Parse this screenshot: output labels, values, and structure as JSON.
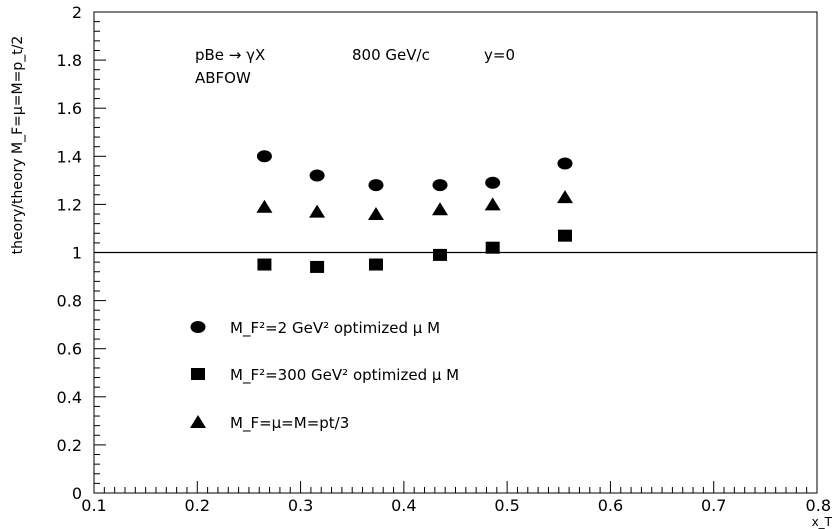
{
  "chart_data": {
    "type": "scatter",
    "title": "",
    "annotations": [
      "pBe → γX",
      "800 GeV/c",
      "y=0",
      "ABFOW"
    ],
    "xlabel": "x_T",
    "ylabel": "theory/theory M_F=μ=M=p_t/2",
    "xlim": [
      0.1,
      0.8
    ],
    "ylim": [
      0,
      2
    ],
    "x_ticks": [
      "0.1",
      "0.2",
      "0.3",
      "0.4",
      "0.5",
      "0.6",
      "0.7",
      "0.8"
    ],
    "y_ticks": [
      "0",
      "0.2",
      "0.4",
      "0.6",
      "0.8",
      "1",
      "1.2",
      "1.4",
      "1.6",
      "1.8",
      "2"
    ],
    "reference_line_y": 1,
    "grid": false,
    "legend_position": "left-center",
    "series": [
      {
        "name": "M_F²=2 GeV² optimized μ M",
        "marker": "circle",
        "x": [
          0.265,
          0.316,
          0.373,
          0.435,
          0.486,
          0.556
        ],
        "y": [
          1.4,
          1.32,
          1.28,
          1.28,
          1.29,
          1.37
        ]
      },
      {
        "name": "M_F²=300 GeV² optimized μ M",
        "marker": "square",
        "x": [
          0.265,
          0.316,
          0.373,
          0.435,
          0.486,
          0.556
        ],
        "y": [
          0.95,
          0.94,
          0.95,
          0.99,
          1.02,
          1.07
        ]
      },
      {
        "name": "M_F=μ=M=pt/3",
        "marker": "triangle",
        "x": [
          0.265,
          0.316,
          0.373,
          0.435,
          0.486,
          0.556
        ],
        "y": [
          1.19,
          1.17,
          1.16,
          1.18,
          1.2,
          1.23
        ]
      }
    ]
  }
}
